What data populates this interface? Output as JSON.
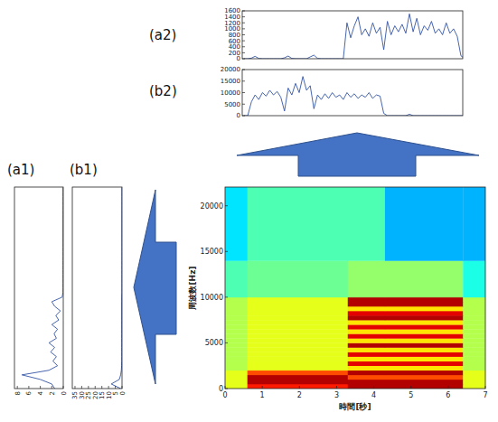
{
  "chart_data": [
    {
      "type": "heatmap",
      "xlabel": "時間[秒]",
      "ylabel": "周波数[Hz]",
      "xlim": [
        0,
        7
      ],
      "xticks": [
        0,
        1,
        2,
        3,
        4,
        5,
        6,
        7
      ],
      "ylim": [
        0,
        22050
      ],
      "yticks": [
        0,
        5000,
        10000,
        15000,
        20000
      ],
      "x_edges": [
        0,
        0.6,
        3.3,
        4.3,
        6.4,
        7
      ],
      "y_edges": [
        0,
        500,
        1000,
        1500,
        2000,
        2500,
        3000,
        3500,
        4000,
        4500,
        5000,
        5500,
        6000,
        6500,
        7000,
        7500,
        8000,
        8500,
        9000,
        9500,
        10000,
        14000,
        22050
      ],
      "zlim": [
        0,
        10
      ],
      "cells": [
        [
          6,
          8.5,
          9.5,
          9.5,
          6
        ],
        [
          6,
          9.5,
          9.5,
          9.5,
          6
        ],
        [
          6,
          9.5,
          8,
          8,
          6
        ],
        [
          6,
          8,
          9.5,
          9.5,
          6
        ],
        [
          5.5,
          6,
          6.5,
          6.5,
          5.5
        ],
        [
          5.5,
          6,
          9,
          9,
          5.5
        ],
        [
          5.5,
          6,
          6.5,
          6.5,
          5.5
        ],
        [
          5.5,
          6,
          9,
          9,
          5.5
        ],
        [
          5.5,
          6,
          6.5,
          6.5,
          5.5
        ],
        [
          5.5,
          6,
          9.5,
          9.5,
          5.5
        ],
        [
          5.5,
          6,
          6.5,
          6.5,
          5.5
        ],
        [
          5.5,
          6,
          9,
          9,
          5.5
        ],
        [
          5.5,
          6,
          6.5,
          6.5,
          5.5
        ],
        [
          5.5,
          6,
          9,
          9,
          5.5
        ],
        [
          5.5,
          6,
          6.5,
          6.5,
          5.5
        ],
        [
          5.5,
          6,
          9.5,
          9.5,
          5.5
        ],
        [
          5.5,
          6,
          9,
          9,
          5.5
        ],
        [
          5.5,
          6,
          6.5,
          6.5,
          5.5
        ],
        [
          5.5,
          6,
          9.5,
          9.5,
          5.5
        ],
        [
          5.5,
          6,
          9.5,
          9.5,
          5.5
        ],
        [
          4.5,
          4.8,
          5.2,
          5.2,
          4
        ],
        [
          3.5,
          4.5,
          4.5,
          3,
          3
        ]
      ]
    },
    {
      "type": "line",
      "title": "(a2)",
      "color": "#3355a5",
      "tick_labels": "y",
      "xlim": [
        0.45,
        6.45
      ],
      "ylim": [
        0,
        1600
      ],
      "yticks": [
        0,
        200,
        400,
        600,
        800,
        1000,
        1200,
        1400,
        1600
      ],
      "x": [
        0.5,
        0.6,
        0.7,
        0.8,
        0.9,
        1.0,
        1.1,
        1.2,
        1.3,
        1.4,
        1.5,
        1.6,
        1.7,
        1.8,
        1.9,
        2.0,
        2.1,
        2.2,
        2.3,
        2.4,
        2.5,
        2.6,
        2.7,
        2.8,
        2.9,
        3.0,
        3.1,
        3.2,
        3.3,
        3.4,
        3.5,
        3.6,
        3.7,
        3.8,
        3.9,
        4.0,
        4.1,
        4.2,
        4.3,
        4.4,
        4.5,
        4.6,
        4.7,
        4.8,
        4.9,
        5.0,
        5.1,
        5.2,
        5.3,
        5.4,
        5.5,
        5.6,
        5.7,
        5.8,
        5.9,
        6.0,
        6.1,
        6.2,
        6.3,
        6.4,
        6.5
      ],
      "values": [
        0,
        0,
        20,
        80,
        10,
        0,
        0,
        0,
        0,
        0,
        0,
        30,
        90,
        10,
        0,
        0,
        0,
        0,
        60,
        120,
        10,
        0,
        0,
        0,
        0,
        0,
        0,
        0,
        1200,
        700,
        1100,
        1400,
        800,
        1000,
        750,
        1200,
        850,
        1050,
        300,
        1250,
        800,
        1100,
        900,
        1150,
        850,
        1500,
        900,
        1350,
        800,
        1100,
        950,
        1250,
        850,
        1000,
        800,
        1200,
        850,
        1000,
        750,
        100,
        0
      ]
    },
    {
      "type": "line",
      "title": "(b2)",
      "color": "#3355a5",
      "tick_labels": "y",
      "xlim": [
        0.45,
        6.45
      ],
      "ylim": [
        0,
        20000
      ],
      "yticks": [
        0,
        5000,
        10000,
        15000,
        20000
      ],
      "x": [
        0.5,
        0.6,
        0.7,
        0.8,
        0.9,
        1.0,
        1.1,
        1.2,
        1.3,
        1.4,
        1.5,
        1.6,
        1.7,
        1.8,
        1.9,
        2.0,
        2.1,
        2.2,
        2.3,
        2.4,
        2.5,
        2.6,
        2.7,
        2.8,
        2.9,
        3.0,
        3.1,
        3.2,
        3.3,
        3.4,
        3.5,
        3.6,
        3.7,
        3.8,
        3.9,
        4.0,
        4.1,
        4.2,
        4.3,
        4.4,
        4.5,
        4.6,
        4.7,
        4.8,
        4.9,
        5.0,
        5.1,
        5.2,
        5.3,
        5.4,
        5.5,
        5.6,
        5.7,
        5.8,
        5.9,
        6.0,
        6.1,
        6.2,
        6.3,
        6.4,
        6.5
      ],
      "values": [
        0,
        0,
        6000,
        9000,
        7000,
        10000,
        8500,
        11000,
        9000,
        10500,
        8000,
        2000,
        12000,
        9000,
        14000,
        10000,
        17000,
        11000,
        13000,
        3000,
        9000,
        7000,
        9500,
        7500,
        10000,
        8000,
        9000,
        7000,
        10000,
        8000,
        9500,
        7500,
        9000,
        8000,
        10000,
        7500,
        9000,
        8500,
        1000,
        0,
        0,
        0,
        0,
        0,
        0,
        600,
        0,
        0,
        0,
        0,
        0,
        0,
        0,
        0,
        0,
        0,
        0,
        0,
        0,
        0,
        0
      ]
    },
    {
      "type": "line",
      "title": "(a1)",
      "orientation": "horizontal",
      "color": "#3355a5",
      "tick_labels": "x",
      "xlim": [
        8.5,
        0
      ],
      "xticks": [
        8,
        6,
        4,
        2,
        0
      ],
      "ylim": [
        0,
        22050
      ],
      "y": [
        0,
        500,
        1000,
        1500,
        2000,
        2500,
        3000,
        3500,
        4000,
        4500,
        5000,
        5500,
        6000,
        6500,
        7000,
        7500,
        8000,
        8500,
        9000,
        9500,
        10000,
        10500,
        11000,
        11500,
        12000,
        12500,
        13000,
        13500,
        14000,
        14500,
        15000,
        15500,
        16000,
        16500,
        17000,
        17500,
        18000,
        18500,
        19000,
        19500,
        20000,
        20500,
        21000,
        21500,
        22000
      ],
      "values": [
        1.5,
        2,
        4,
        7.2,
        2.5,
        1,
        1.8,
        1.2,
        2.2,
        1.5,
        2.5,
        1.2,
        1.6,
        1,
        2,
        0.8,
        1.3,
        0.5,
        1.5,
        2,
        0.2,
        0.05,
        0.05,
        0.05,
        0.05,
        0.05,
        0.05,
        0.05,
        0.05,
        0.05,
        0.05,
        0.05,
        0.05,
        0.05,
        0.05,
        0.05,
        0.05,
        0.05,
        0.05,
        0.05,
        0.05,
        0.05,
        0.05,
        0.05,
        0.05
      ]
    },
    {
      "type": "line",
      "title": "(b1)",
      "orientation": "horizontal",
      "color": "#3355a5",
      "tick_labels": "x",
      "xlim": [
        37,
        0
      ],
      "xticks": [
        35,
        30,
        25,
        20,
        15,
        10,
        5,
        0
      ],
      "ylim": [
        0,
        22050
      ],
      "y": [
        0,
        500,
        1000,
        1500,
        2000,
        2500,
        3000,
        3500,
        4000,
        4500,
        5000,
        5500,
        6000,
        6500,
        7000,
        7500,
        8000,
        8500,
        9000,
        9500,
        10000,
        10500,
        11000,
        11500,
        12000,
        12500,
        13000,
        13500,
        14000,
        14500,
        15000,
        15500,
        16000,
        16500,
        17000,
        17500,
        18000,
        18500,
        19000,
        19500,
        20000,
        20500,
        21000,
        21500,
        22000
      ],
      "values": [
        1,
        8,
        2,
        1,
        0.5,
        0.3,
        0.2,
        0.2,
        0.2,
        0.2,
        0.2,
        0.2,
        0.2,
        0.2,
        0.2,
        0.2,
        0.2,
        0.2,
        0.2,
        0.2,
        0.2,
        0.1,
        0.1,
        0.1,
        0.1,
        0.1,
        0.1,
        0.1,
        0.1,
        0.1,
        0.1,
        0.1,
        0.1,
        0.1,
        0.1,
        0.1,
        0.1,
        0.1,
        0.1,
        0.1,
        0.1,
        0.1,
        0.1,
        0.1,
        0.1
      ]
    }
  ]
}
